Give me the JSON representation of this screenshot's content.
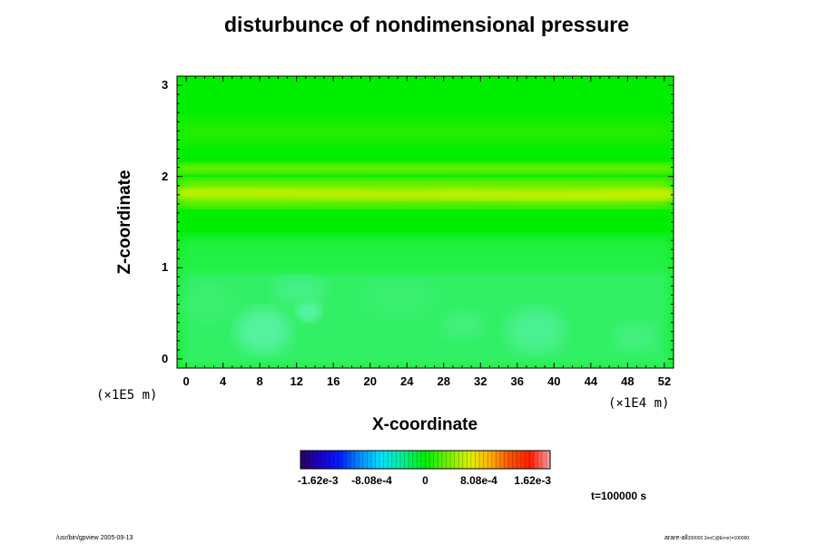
{
  "chart_data": {
    "type": "heatmap",
    "title": "disturbunce of nondimensional pressure",
    "xlabel": "X-coordinate",
    "ylabel": "Z-coordinate",
    "x_unit": "(×1E4 m)",
    "y_unit": "(×1E5 m)",
    "xlim": [
      -1,
      53
    ],
    "ylim": [
      -0.1,
      3.1
    ],
    "x_ticks": [
      "0",
      "4",
      "8",
      "12",
      "16",
      "20",
      "24",
      "28",
      "32",
      "36",
      "40",
      "44",
      "48",
      "52"
    ],
    "y_ticks": [
      "0",
      "1",
      "2",
      "3"
    ],
    "colorbar": {
      "range": [
        -0.00162,
        0.00162
      ],
      "tick_labels": [
        "-1.62e-3",
        "-8.08e-4",
        "0",
        "8.08e-4",
        "1.62e-3"
      ],
      "tick_values": [
        -0.00162,
        -0.000808,
        0,
        0.000808,
        0.00162
      ]
    },
    "field_features": [
      {
        "z": 1.8,
        "value": 0.0008
      },
      {
        "z": 2.05,
        "value": 0.00035
      },
      {
        "z": 1.2,
        "value": -0.00015
      },
      {
        "z": 0.5,
        "value": -0.0003
      }
    ],
    "annotation": "t=100000 s"
  },
  "footer": {
    "left": "/usr/bin/gpview 2005-09-13",
    "right_main": "arare-all",
    "right_sub": "200000 2noC@Error)=100000"
  }
}
